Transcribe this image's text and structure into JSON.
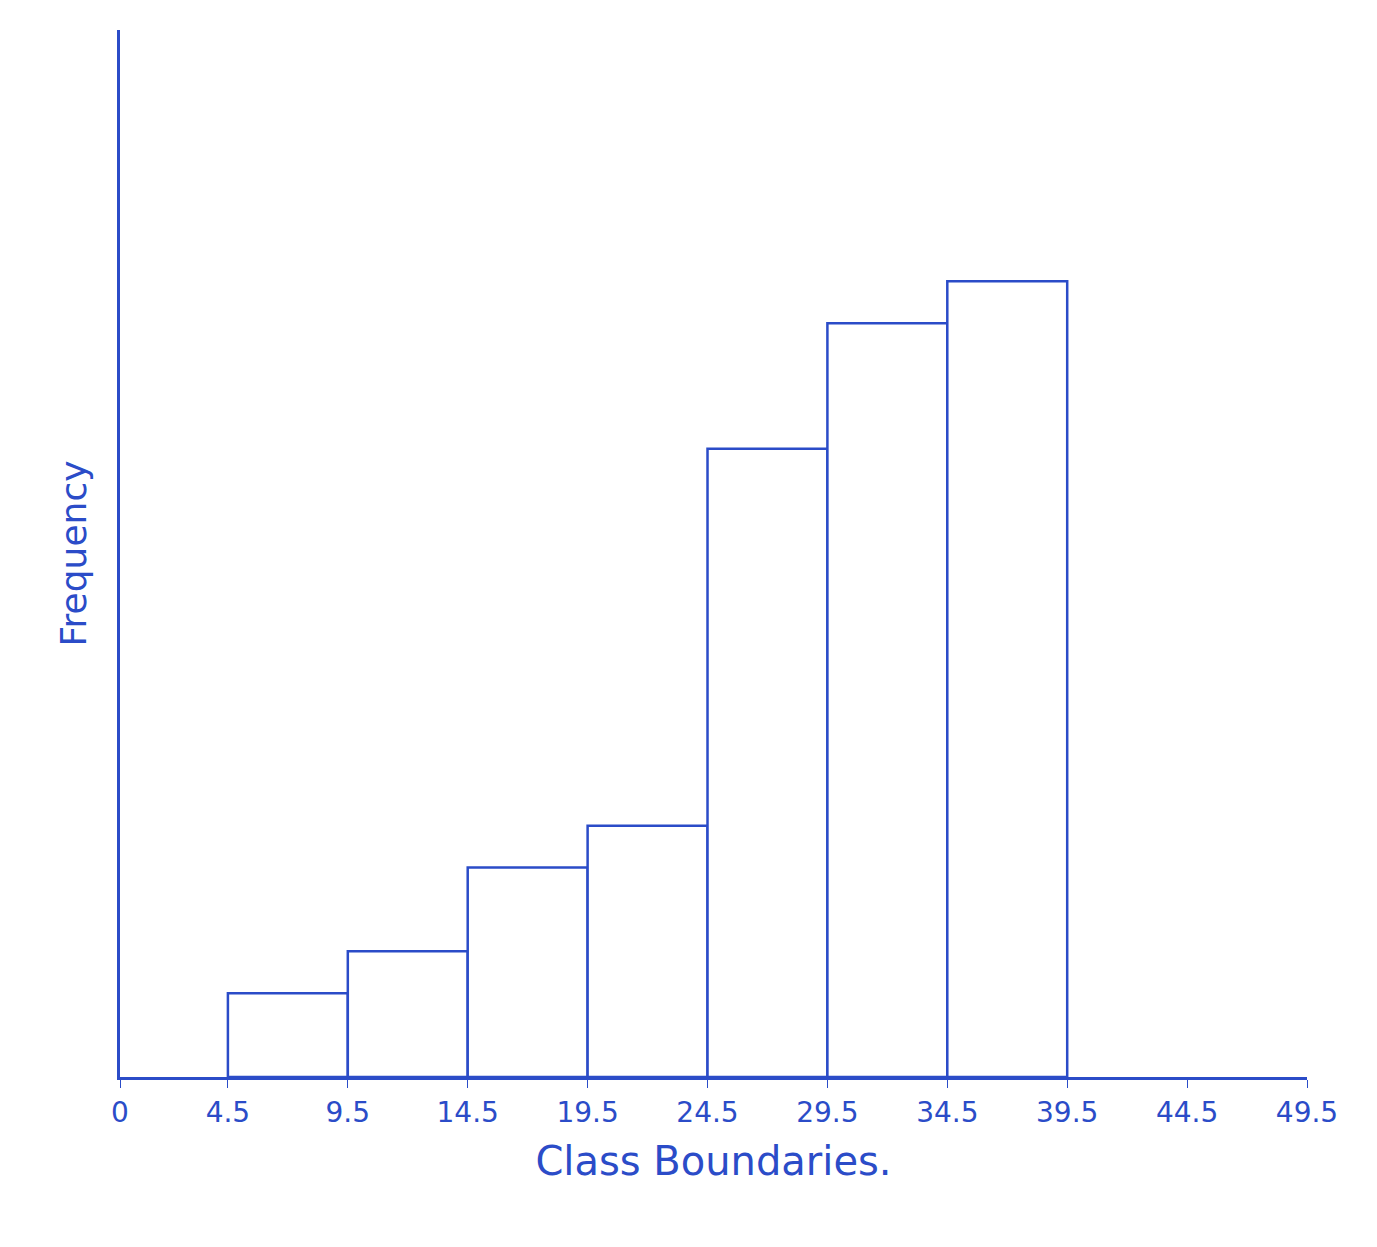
{
  "chart_data": {
    "type": "histogram",
    "x_label": "Class Boundaries.",
    "y_label": "Frequency",
    "bins": [
      4.5,
      9.5,
      14.5,
      19.5,
      24.5,
      29.5,
      34.5,
      39.5
    ],
    "values": [
      2,
      3,
      5,
      6,
      15,
      18,
      19
    ],
    "color": "#2b4cc8",
    "xlim": [
      0,
      49.5
    ],
    "xticks": [
      0,
      4.5,
      9.5,
      14.5,
      19.5,
      24.5,
      29.5,
      34.5,
      39.5,
      44.5,
      49.5
    ],
    "ylim": [
      0,
      25
    ],
    "grid": false,
    "tick_labels": "x"
  }
}
